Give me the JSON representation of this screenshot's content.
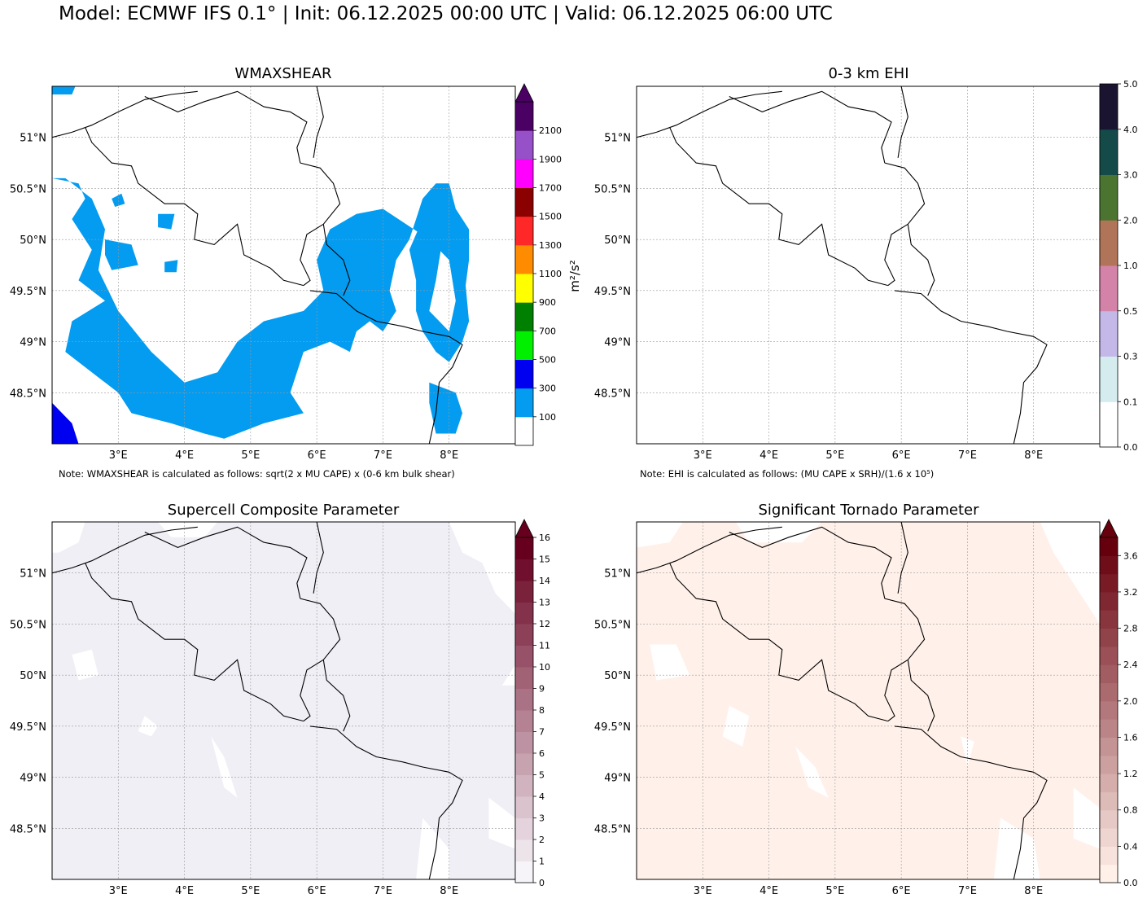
{
  "suptitle": "Model: ECMWF IFS 0.1° | Init: 06.12.2025 00:00 UTC | Valid: 06.12.2025 06:00 UTC",
  "panels": {
    "wmax": {
      "title": "WMAXSHEAR",
      "note": "Note: WMAXSHEAR is calculated as follows: sqrt(2 x MU CAPE) x (0-6 km bulk shear)",
      "unit": "m²/s²",
      "ticks": [
        "100",
        "300",
        "500",
        "700",
        "900",
        "1100",
        "1300",
        "1500",
        "1700",
        "1900",
        "2100"
      ],
      "colors": [
        "#ffffff",
        "#039cf0",
        "#0000f0",
        "#00f000",
        "#008000",
        "#ffff00",
        "#ff8c00",
        "#ff2828",
        "#8b0000",
        "#ff00ff",
        "#9650c8",
        "#4b0064"
      ]
    },
    "ehi": {
      "title": "0-3 km EHI",
      "note": "Note: EHI is calculated as follows: (MU CAPE x SRH)/(1.6 x 10⁵)",
      "ticks": [
        "0.0",
        "0.1",
        "0.3",
        "0.5",
        "1.0",
        "2.0",
        "3.0",
        "4.0",
        "5.0"
      ],
      "colors": [
        "#ffffff",
        "#d4ecee",
        "#c3b8e8",
        "#d483a8",
        "#b07458",
        "#4a7430",
        "#144a48",
        "#1a1430"
      ]
    },
    "scp": {
      "title": "Supercell Composite Parameter",
      "ticks": [
        "0",
        "1",
        "2",
        "3",
        "4",
        "5",
        "6",
        "7",
        "8",
        "9",
        "10",
        "11",
        "12",
        "13",
        "14",
        "15",
        "16"
      ],
      "fill": "#f1eff6"
    },
    "stp": {
      "title": "Significant Tornado Parameter",
      "ticks": [
        "0.0",
        "0.4",
        "0.8",
        "1.2",
        "1.6",
        "2.0",
        "2.4",
        "2.8",
        "3.2",
        "3.6"
      ],
      "fill": "#fff1ea"
    }
  },
  "axes": {
    "lon_labels": [
      "3°E",
      "4°E",
      "5°E",
      "6°E",
      "7°E",
      "8°E"
    ],
    "lat_labels": [
      "51°N",
      "50.5°N",
      "50°N",
      "49.5°N",
      "49°N",
      "48.5°N"
    ],
    "lon_range": [
      2.0,
      9.0
    ],
    "lat_range": [
      48.0,
      51.5
    ],
    "gridlines": true
  }
}
